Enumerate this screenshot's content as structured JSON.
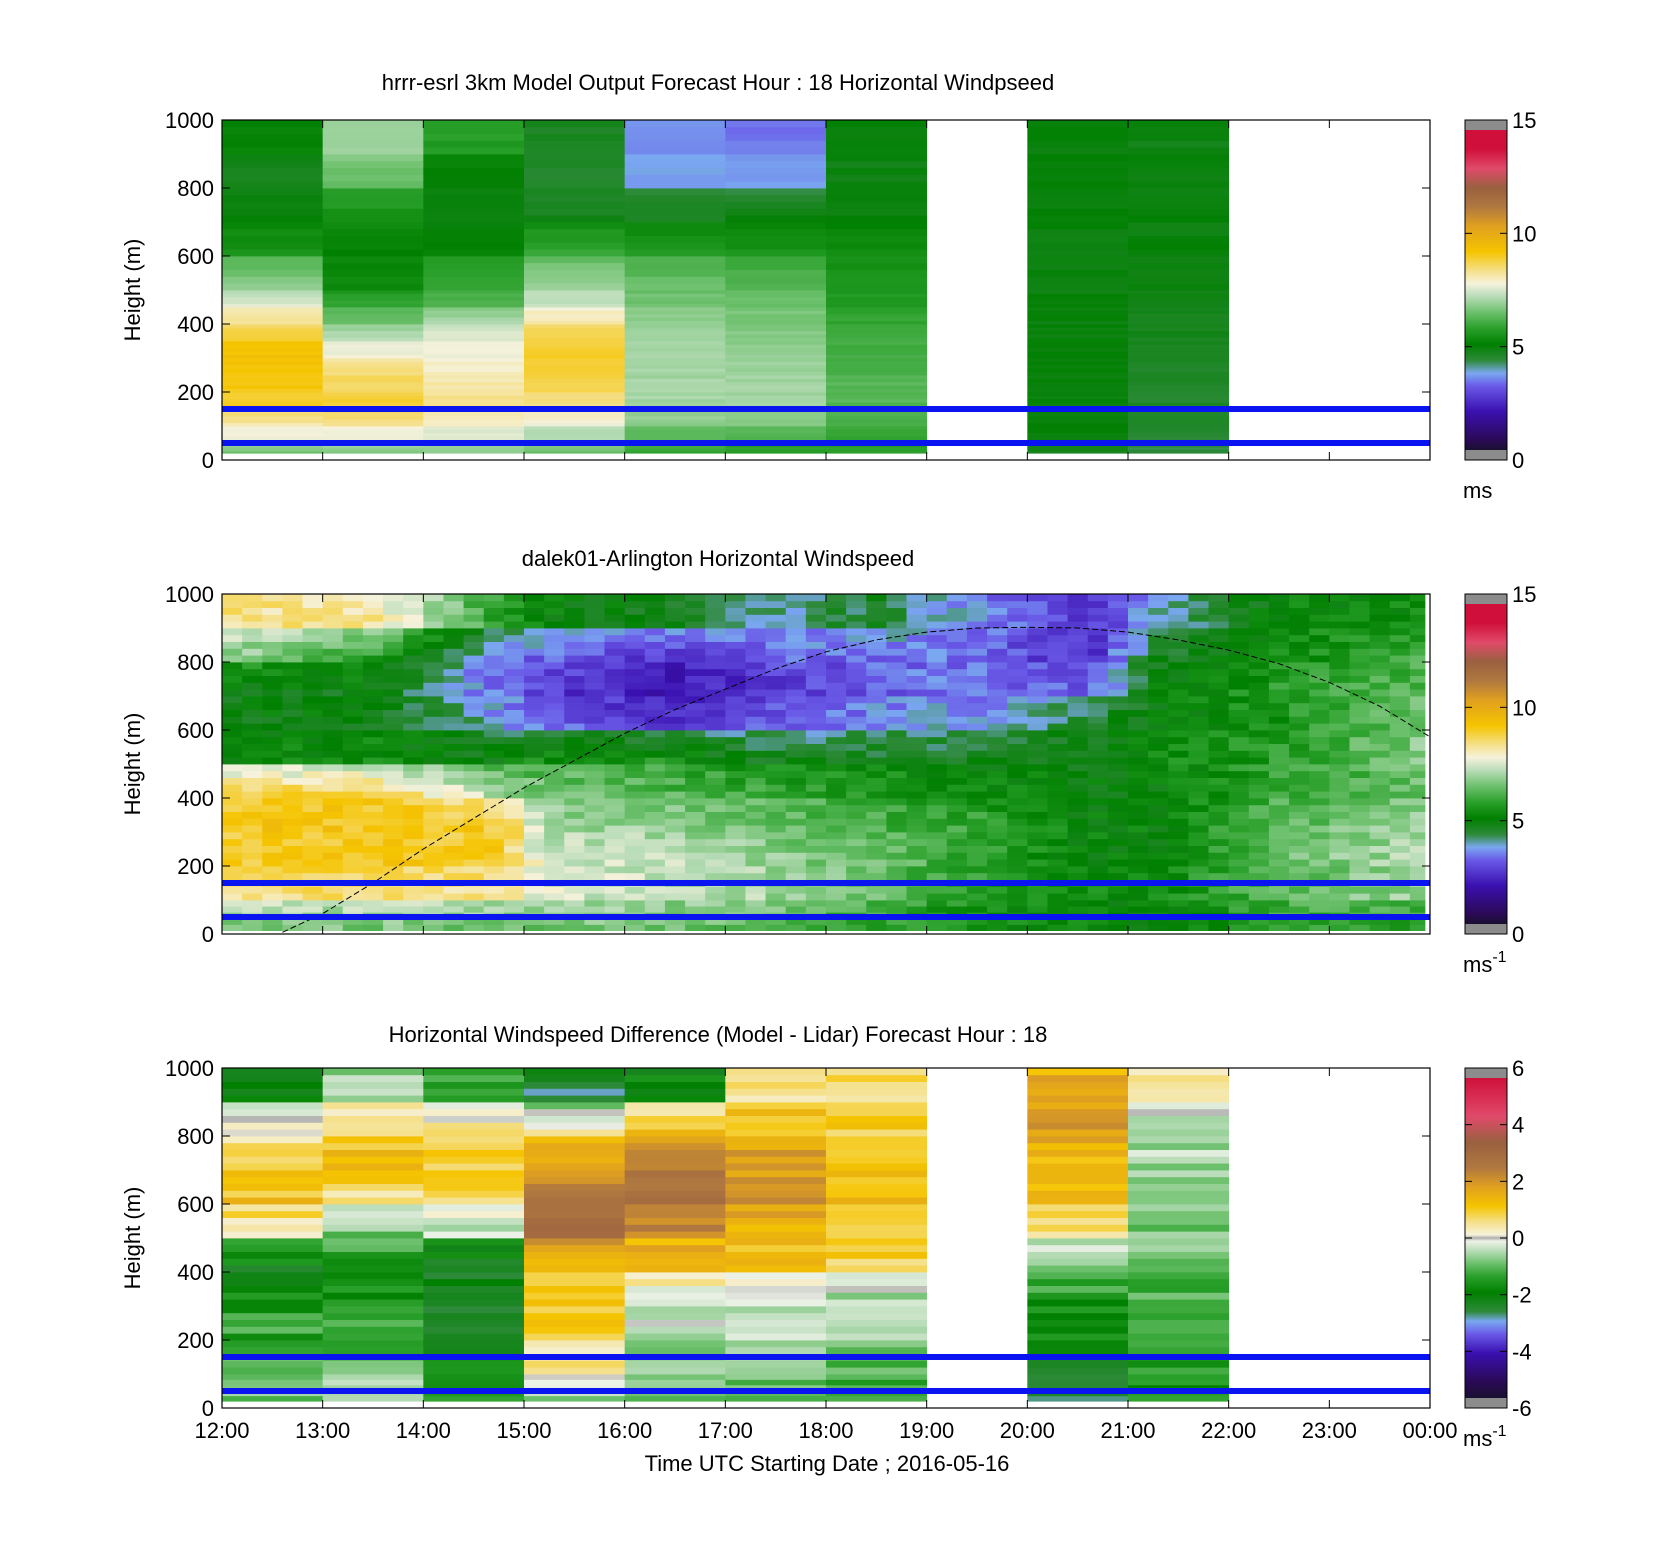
{
  "colors": {
    "reference_line": "#0a14f0",
    "axis": "#000000",
    "pbl_curve": "#000000",
    "speed_colormap": [
      [
        0.0,
        "#1a1030"
      ],
      [
        0.03,
        "#2a0a55"
      ],
      [
        0.12,
        "#3a10b0"
      ],
      [
        0.2,
        "#6a5ae8"
      ],
      [
        0.24,
        "#7aa8f0"
      ],
      [
        0.28,
        "#2e8a3a"
      ],
      [
        0.33,
        "#008000"
      ],
      [
        0.38,
        "#2aa02a"
      ],
      [
        0.43,
        "#6cc06c"
      ],
      [
        0.48,
        "#b8dcb8"
      ],
      [
        0.52,
        "#f6f2dc"
      ],
      [
        0.56,
        "#f5e08a"
      ],
      [
        0.62,
        "#f5c400"
      ],
      [
        0.7,
        "#e0a020"
      ],
      [
        0.76,
        "#b07840"
      ],
      [
        0.82,
        "#9a6040"
      ],
      [
        0.88,
        "#e04a6a"
      ],
      [
        0.94,
        "#d0103a"
      ],
      [
        1.0,
        "#d0103a"
      ]
    ],
    "diff_colormap": [
      [
        0.0,
        "#1a1030"
      ],
      [
        0.05,
        "#2a0a55"
      ],
      [
        0.14,
        "#3a10b0"
      ],
      [
        0.2,
        "#6a5ae8"
      ],
      [
        0.24,
        "#7aa8f0"
      ],
      [
        0.27,
        "#2e8a3a"
      ],
      [
        0.33,
        "#008000"
      ],
      [
        0.38,
        "#2aa02a"
      ],
      [
        0.42,
        "#6cc06c"
      ],
      [
        0.46,
        "#b8dcb8"
      ],
      [
        0.49,
        "#eef2e8"
      ],
      [
        0.5,
        "#b0b0b0"
      ],
      [
        0.51,
        "#f6f2dc"
      ],
      [
        0.55,
        "#f5e08a"
      ],
      [
        0.6,
        "#f5c400"
      ],
      [
        0.66,
        "#e0a020"
      ],
      [
        0.72,
        "#b07840"
      ],
      [
        0.8,
        "#9a6040"
      ],
      [
        0.88,
        "#e04a6a"
      ],
      [
        1.0,
        "#d0103a"
      ]
    ]
  },
  "chart_data": [
    {
      "type": "heatmap",
      "title": "hrrr-esrl 3km Model Output   Forecast Hour : 18 Horizontal Windpseed",
      "ylabel": "Height (m)",
      "xlabel": "",
      "x_range_hours": [
        12,
        24
      ],
      "ylim": [
        0,
        1000
      ],
      "yticks": [
        "0",
        "200",
        "400",
        "600",
        "800",
        "1000"
      ],
      "xticks": [
        "12:00",
        "13:00",
        "14:00",
        "15:00",
        "16:00",
        "17:00",
        "18:00",
        "19:00",
        "20:00",
        "21:00",
        "22:00",
        "23:00",
        "00:00"
      ],
      "show_xtick_labels": false,
      "colorbar": {
        "min": 0,
        "max": 15,
        "ticks": [
          "0",
          "5",
          "10",
          "15"
        ],
        "unit": "ms",
        "unit_sup": ""
      },
      "reference_lines_m": [
        150,
        50
      ],
      "data_floor_m": 20,
      "height_bins_m": [
        20,
        50,
        100,
        150,
        200,
        250,
        300,
        350,
        400,
        450,
        500,
        600,
        700,
        800,
        900,
        1000
      ],
      "hourly_profiles": [
        {
          "hour": 12,
          "speeds": [
            6.5,
            7.6,
            8.2,
            9.0,
            9.2,
            9.3,
            9.4,
            9.0,
            8.3,
            7.6,
            6.8,
            5.4,
            4.8,
            4.5,
            5.0
          ]
        },
        {
          "hour": 13,
          "speeds": [
            6.6,
            7.6,
            8.4,
            9.0,
            8.7,
            8.5,
            7.8,
            7.2,
            6.5,
            5.8,
            5.2,
            5.0,
            5.3,
            6.4,
            7.0
          ]
        },
        {
          "hour": 14,
          "speeds": [
            6.8,
            7.4,
            8.0,
            8.4,
            8.2,
            8.0,
            7.8,
            7.6,
            7.0,
            6.2,
            5.8,
            5.0,
            4.8,
            4.8,
            5.6
          ]
        },
        {
          "hour": 15,
          "speeds": [
            6.4,
            7.0,
            7.8,
            8.4,
            8.8,
            9.0,
            9.0,
            8.8,
            8.2,
            7.4,
            6.8,
            5.8,
            4.6,
            4.4,
            4.5
          ]
        },
        {
          "hour": 16,
          "speeds": [
            5.8,
            6.2,
            6.8,
            7.0,
            7.0,
            7.0,
            7.0,
            7.0,
            6.8,
            6.5,
            6.4,
            5.6,
            4.6,
            3.6,
            3.4
          ]
        },
        {
          "hour": 17,
          "speeds": [
            5.6,
            6.0,
            6.6,
            7.0,
            7.0,
            6.9,
            6.8,
            6.7,
            6.6,
            6.4,
            6.2,
            5.4,
            4.8,
            3.5,
            3.2
          ]
        },
        {
          "hour": 18,
          "speeds": [
            5.6,
            5.8,
            6.0,
            6.2,
            6.2,
            6.1,
            6.0,
            6.0,
            5.8,
            5.6,
            5.4,
            5.2,
            4.8,
            4.7,
            4.8
          ]
        },
        {
          "hour": 19,
          "speeds": []
        },
        {
          "hour": 20,
          "speeds": [
            4.6,
            4.8,
            4.8,
            4.8,
            4.8,
            4.8,
            4.8,
            4.8,
            4.8,
            4.8,
            4.8,
            4.8,
            4.8,
            4.8,
            4.8
          ]
        },
        {
          "hour": 21,
          "speeds": [
            4.2,
            4.3,
            4.4,
            4.4,
            4.4,
            4.4,
            4.5,
            4.6,
            4.6,
            4.7,
            4.8,
            4.8,
            4.8,
            4.8,
            4.7
          ]
        },
        {
          "hour": 22,
          "speeds": []
        },
        {
          "hour": 23,
          "speeds": []
        }
      ]
    },
    {
      "type": "heatmap",
      "title": "dalek01-Arlington  Horizontal Windspeed",
      "ylabel": "Height (m)",
      "xlabel": "",
      "x_range_hours": [
        12,
        24
      ],
      "ylim": [
        0,
        1000
      ],
      "yticks": [
        "0",
        "200",
        "400",
        "600",
        "800",
        "1000"
      ],
      "xticks": [
        "12:00",
        "13:00",
        "14:00",
        "15:00",
        "16:00",
        "17:00",
        "18:00",
        "19:00",
        "20:00",
        "21:00",
        "22:00",
        "23:00",
        "00:00"
      ],
      "show_xtick_labels": false,
      "colorbar": {
        "min": 0,
        "max": 15,
        "ticks": [
          "0",
          "5",
          "10",
          "15"
        ],
        "unit": "ms",
        "unit_sup": "-1"
      },
      "reference_lines_m": [
        150,
        50
      ],
      "data_floor_m": 10,
      "data_end_hour": 23.95,
      "profile_step_hours": 0.2,
      "height_bins_m": [
        10,
        100,
        200,
        300,
        400,
        500,
        600,
        700,
        800,
        900,
        1000
      ],
      "anchor_profiles": [
        {
          "hour": 12.0,
          "speeds": [
            6.4,
            8.4,
            9.0,
            9.2,
            9.0,
            5.0,
            4.8,
            4.8,
            6.8,
            8.4
          ]
        },
        {
          "hour": 13.5,
          "speeds": [
            6.6,
            8.6,
            9.2,
            9.3,
            9.0,
            5.2,
            4.8,
            4.7,
            5.6,
            8.2
          ]
        },
        {
          "hour": 14.8,
          "speeds": [
            6.4,
            8.2,
            9.0,
            9.0,
            7.0,
            4.8,
            3.6,
            3.0,
            3.2,
            5.6
          ]
        },
        {
          "hour": 15.2,
          "speeds": [
            6.6,
            7.6,
            7.4,
            7.0,
            6.6,
            5.4,
            3.2,
            2.6,
            3.0,
            5.0
          ]
        },
        {
          "hour": 16.4,
          "speeds": [
            6.6,
            7.2,
            7.2,
            6.8,
            6.2,
            5.4,
            2.2,
            1.8,
            2.4,
            4.6
          ]
        },
        {
          "hour": 17.5,
          "speeds": [
            6.2,
            7.0,
            6.8,
            6.4,
            5.8,
            4.6,
            3.0,
            2.4,
            3.0,
            3.8
          ]
        },
        {
          "hour": 18.5,
          "speeds": [
            5.8,
            6.4,
            6.4,
            6.0,
            5.6,
            4.6,
            3.4,
            3.0,
            3.2,
            4.4
          ]
        },
        {
          "hour": 19.5,
          "speeds": [
            5.2,
            5.6,
            5.8,
            5.8,
            5.2,
            4.6,
            3.6,
            3.2,
            3.2,
            3.4
          ]
        },
        {
          "hour": 20.6,
          "speeds": [
            5.0,
            5.2,
            5.0,
            5.0,
            4.8,
            4.8,
            4.4,
            3.0,
            2.2,
            2.4
          ]
        },
        {
          "hour": 21.3,
          "speeds": [
            4.8,
            5.2,
            5.0,
            5.0,
            4.8,
            5.2,
            5.0,
            4.8,
            4.6,
            3.6
          ]
        },
        {
          "hour": 22.5,
          "speeds": [
            5.8,
            6.2,
            6.4,
            6.2,
            5.8,
            5.6,
            5.4,
            5.6,
            5.2,
            5.0
          ]
        },
        {
          "hour": 24.0,
          "speeds": [
            5.6,
            7.0,
            7.2,
            7.0,
            6.4,
            6.8,
            6.6,
            6.2,
            6.0,
            5.2
          ]
        }
      ],
      "pbl_curve": {
        "hours": [
          12.6,
          13.0,
          13.5,
          14.0,
          14.5,
          15.0,
          15.5,
          16.0,
          16.5,
          17.0,
          17.5,
          18.0,
          18.5,
          19.0,
          19.5,
          20.0,
          20.5,
          21.0,
          21.5,
          22.0,
          22.5,
          23.0,
          23.5,
          24.0
        ],
        "heights_m": [
          5,
          60,
          150,
          250,
          340,
          430,
          510,
          590,
          660,
          720,
          780,
          830,
          865,
          888,
          900,
          902,
          900,
          888,
          865,
          835,
          795,
          740,
          670,
          580
        ]
      }
    },
    {
      "type": "heatmap",
      "title": "Horizontal Windspeed Difference (Model - Lidar) Forecast Hour : 18",
      "ylabel": "Height (m)",
      "xlabel": "Time UTC  Starting Date ; 2016-05-16",
      "x_range_hours": [
        12,
        24
      ],
      "ylim": [
        0,
        1000
      ],
      "yticks": [
        "0",
        "200",
        "400",
        "600",
        "800",
        "1000"
      ],
      "xticks": [
        "12:00",
        "13:00",
        "14:00",
        "15:00",
        "16:00",
        "17:00",
        "18:00",
        "19:00",
        "20:00",
        "21:00",
        "22:00",
        "23:00",
        "00:00"
      ],
      "show_xtick_labels": true,
      "colorbar": {
        "min": -6,
        "max": 6,
        "ticks": [
          "-6",
          "-4",
          "-2",
          "0",
          "2",
          "4",
          "6"
        ],
        "unit": "ms",
        "unit_sup": "-1"
      },
      "reference_lines_m": [
        150,
        50
      ],
      "data_floor_m": 20,
      "height_bins_m": [
        20,
        100,
        200,
        300,
        400,
        500,
        600,
        700,
        800,
        900,
        1000
      ],
      "hourly_profiles": [
        {
          "hour": 12,
          "speeds": [
            -0.8,
            -1.2,
            -1.4,
            -1.8,
            -2.2,
            0.4,
            1.2,
            1.0,
            0.2,
            -2.0
          ]
        },
        {
          "hour": 13,
          "speeds": [
            -0.6,
            -1.0,
            -1.2,
            -1.8,
            -1.6,
            -1.0,
            0.6,
            1.4,
            1.0,
            -0.6
          ]
        },
        {
          "hour": 14,
          "speeds": [
            -1.4,
            -2.0,
            -2.4,
            -2.4,
            -2.6,
            -0.4,
            1.0,
            1.0,
            0.4,
            -1.2
          ]
        },
        {
          "hour": 15,
          "speeds": [
            -0.8,
            0.4,
            1.2,
            1.0,
            1.4,
            3.4,
            2.6,
            1.6,
            0.6,
            -2.6
          ]
        },
        {
          "hour": 16,
          "speeds": [
            -1.0,
            -0.6,
            -0.4,
            -0.2,
            1.2,
            2.2,
            2.8,
            2.6,
            1.4,
            -2.0
          ]
        },
        {
          "hour": 17,
          "speeds": [
            -1.2,
            -0.8,
            -0.6,
            -0.4,
            1.2,
            1.4,
            2.0,
            2.0,
            1.4,
            0.4
          ]
        },
        {
          "hour": 18,
          "speeds": [
            -1.6,
            -1.2,
            -0.6,
            -0.6,
            0.8,
            1.2,
            1.4,
            1.2,
            1.0,
            0.8
          ]
        },
        {
          "hour": 19,
          "speeds": []
        },
        {
          "hour": 20,
          "speeds": [
            -2.6,
            -2.4,
            -2.0,
            -1.6,
            -0.8,
            0.4,
            1.2,
            1.4,
            2.0,
            1.6
          ]
        },
        {
          "hour": 21,
          "speeds": [
            -1.6,
            -1.6,
            -1.4,
            -1.2,
            -1.0,
            -1.0,
            -0.8,
            -0.6,
            -0.4,
            0.6
          ]
        },
        {
          "hour": 22,
          "speeds": []
        },
        {
          "hour": 23,
          "speeds": []
        }
      ]
    }
  ]
}
